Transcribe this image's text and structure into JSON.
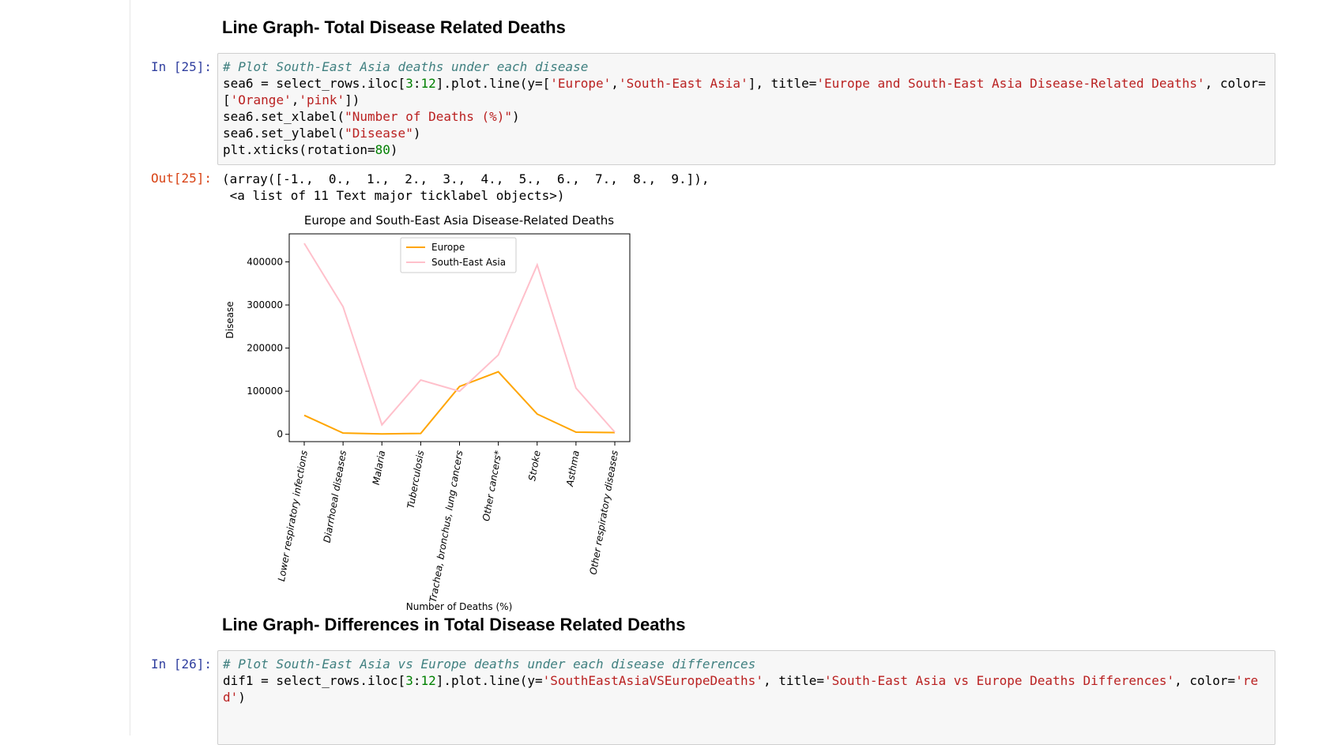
{
  "cells": {
    "heading1": "Line Graph- Total Disease Related Deaths",
    "in25_prompt": "In [25]:",
    "in25_code": [
      [
        [
          "cm",
          "# Plot South-East Asia deaths under each disease"
        ]
      ],
      [
        [
          "",
          "sea6 = select_rows.iloc["
        ],
        [
          "nu",
          "3"
        ],
        [
          "",
          ":"
        ],
        [
          "nu",
          "12"
        ],
        [
          "",
          "].plot.line(y=["
        ],
        [
          "st",
          "'Europe'"
        ],
        [
          "",
          ","
        ],
        [
          "st",
          "'South-East Asia'"
        ],
        [
          "",
          "], title="
        ],
        [
          "st",
          "'Europe and South-East Asia Disease-Related Deaths'"
        ],
        [
          "",
          ", color="
        ]
      ],
      [
        [
          "",
          "["
        ],
        [
          "st",
          "'Orange'"
        ],
        [
          "",
          ","
        ],
        [
          "st",
          "'pink'"
        ],
        [
          "",
          "])"
        ]
      ],
      [
        [
          "",
          "sea6.set_xlabel("
        ],
        [
          "st",
          "\"Number of Deaths (%)\""
        ],
        [
          "",
          ")"
        ]
      ],
      [
        [
          "",
          "sea6.set_ylabel("
        ],
        [
          "st",
          "\"Disease\""
        ],
        [
          "",
          ")"
        ]
      ],
      [
        [
          "",
          "plt.xticks(rotation="
        ],
        [
          "nu",
          "80"
        ],
        [
          "",
          ")"
        ]
      ]
    ],
    "out25_prompt": "Out[25]:",
    "out25_text": "(array([-1.,  0.,  1.,  2.,  3.,  4.,  5.,  6.,  7.,  8.,  9.]),\n <a list of 11 Text major ticklabel objects>)",
    "heading2": "Line Graph- Differences in Total Disease Related Deaths",
    "in26_prompt": "In [26]:",
    "in26_code": [
      [
        [
          "cm",
          "# Plot South-East Asia vs Europe deaths under each disease differences"
        ]
      ],
      [
        [
          "",
          "dif1 = select_rows.iloc["
        ],
        [
          "nu",
          "3"
        ],
        [
          "",
          ":"
        ],
        [
          "nu",
          "12"
        ],
        [
          "",
          "].plot.line(y="
        ],
        [
          "st",
          "'SouthEastAsiaVSEuropeDeaths'"
        ],
        [
          "",
          ", title="
        ],
        [
          "st",
          "'South-East Asia vs Europe Deaths Differences'"
        ],
        [
          "",
          ", color="
        ],
        [
          "st",
          "'re"
        ]
      ],
      [
        [
          "st",
          "d'"
        ],
        [
          "",
          ")"
        ]
      ]
    ]
  },
  "chart_data": {
    "type": "line",
    "title": "Europe and South-East Asia Disease-Related Deaths",
    "xlabel": "Number of Deaths (%)",
    "ylabel": "Disease",
    "categories": [
      "Lower respiratory infections",
      "Diarrhoeal diseases",
      "Malaria",
      "Tuberculosis",
      "Trachea, bronchus, lung cancers",
      "Other cancers*",
      "Stroke",
      "Asthma",
      "Other respiratory diseases"
    ],
    "series": [
      {
        "name": "Europe",
        "color": "#ffa500",
        "values": [
          44000,
          3000,
          1000,
          2000,
          111000,
          145000,
          47000,
          5000,
          4000
        ]
      },
      {
        "name": "South-East Asia",
        "color": "#ffc0cb",
        "values": [
          443000,
          296000,
          22000,
          126000,
          100000,
          184000,
          393000,
          107000,
          5000
        ]
      }
    ],
    "ylim": [
      -17000,
      465000
    ],
    "yticks": [
      0,
      100000,
      200000,
      300000,
      400000
    ],
    "ytick_labels": [
      "0",
      "100000",
      "200000",
      "300000",
      "400000"
    ],
    "legend": "top-center",
    "grid": false
  }
}
